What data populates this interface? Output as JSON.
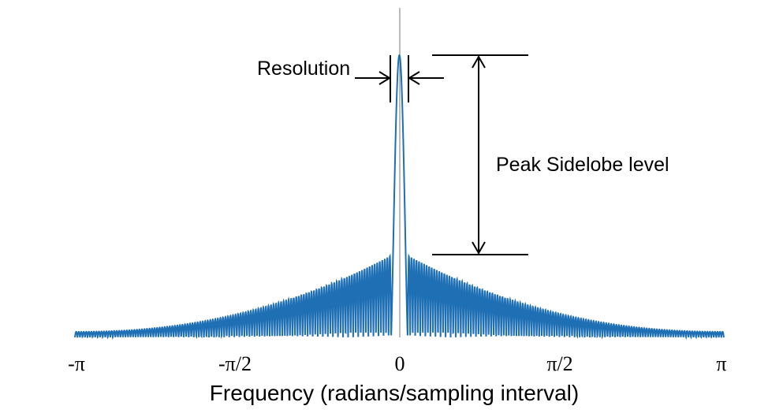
{
  "chart_data": {
    "type": "line",
    "xlabel": "Frequency (radians/sampling interval)",
    "ylabel": "",
    "xlim": [
      -3.14159,
      3.14159
    ],
    "ylim": [
      0,
      1
    ],
    "grid": false,
    "x_tick_labels": [
      "-π",
      "-π/2",
      "0",
      "π/2",
      "π"
    ],
    "x_tick_values": [
      -3.14159,
      -1.5708,
      0,
      1.5708,
      3.14159
    ],
    "series": [
      {
        "color": "#1f6fb5",
        "description_values": {
          "main_lobe_peak": 1.0,
          "peak_sidelobe_level": 0.29,
          "sidelobe_level_at_edges": 0.02,
          "null_to_null_main_lobe_width": 0.16,
          "sidelobe_count_per_side": 125
        }
      }
    ],
    "annotations": {
      "resolution_label": "Resolution",
      "peak_sidelobe_label": "Peak Sidelobe level"
    }
  }
}
